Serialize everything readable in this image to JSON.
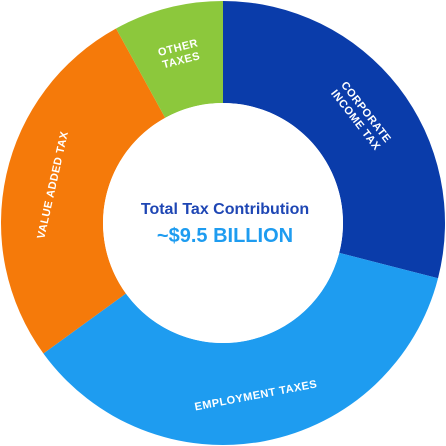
{
  "chart_data": {
    "type": "pie",
    "variant": "donut",
    "center": {
      "title": "Total Tax Contribution",
      "value": "~$9.5 BILLION"
    },
    "slices": [
      {
        "label": "CORPORATE INCOME TAX",
        "label_lines": [
          "CORPORATE",
          "INCOME TAX"
        ],
        "value": 29,
        "color": "#0a3caa"
      },
      {
        "label": "EMPLOYMENT TAXES",
        "label_lines": [
          "EMPLOYMENT TAXES"
        ],
        "value": 36,
        "color": "#1e9cf0"
      },
      {
        "label": "VALUE ADDED TAX",
        "label_lines": [
          "VALUE ADDED TAX"
        ],
        "value": 27,
        "color": "#f57a0a"
      },
      {
        "label": "OTHER TAXES",
        "label_lines": [
          "OTHER",
          "TAXES"
        ],
        "value": 8,
        "color": "#8cc83c"
      }
    ]
  }
}
